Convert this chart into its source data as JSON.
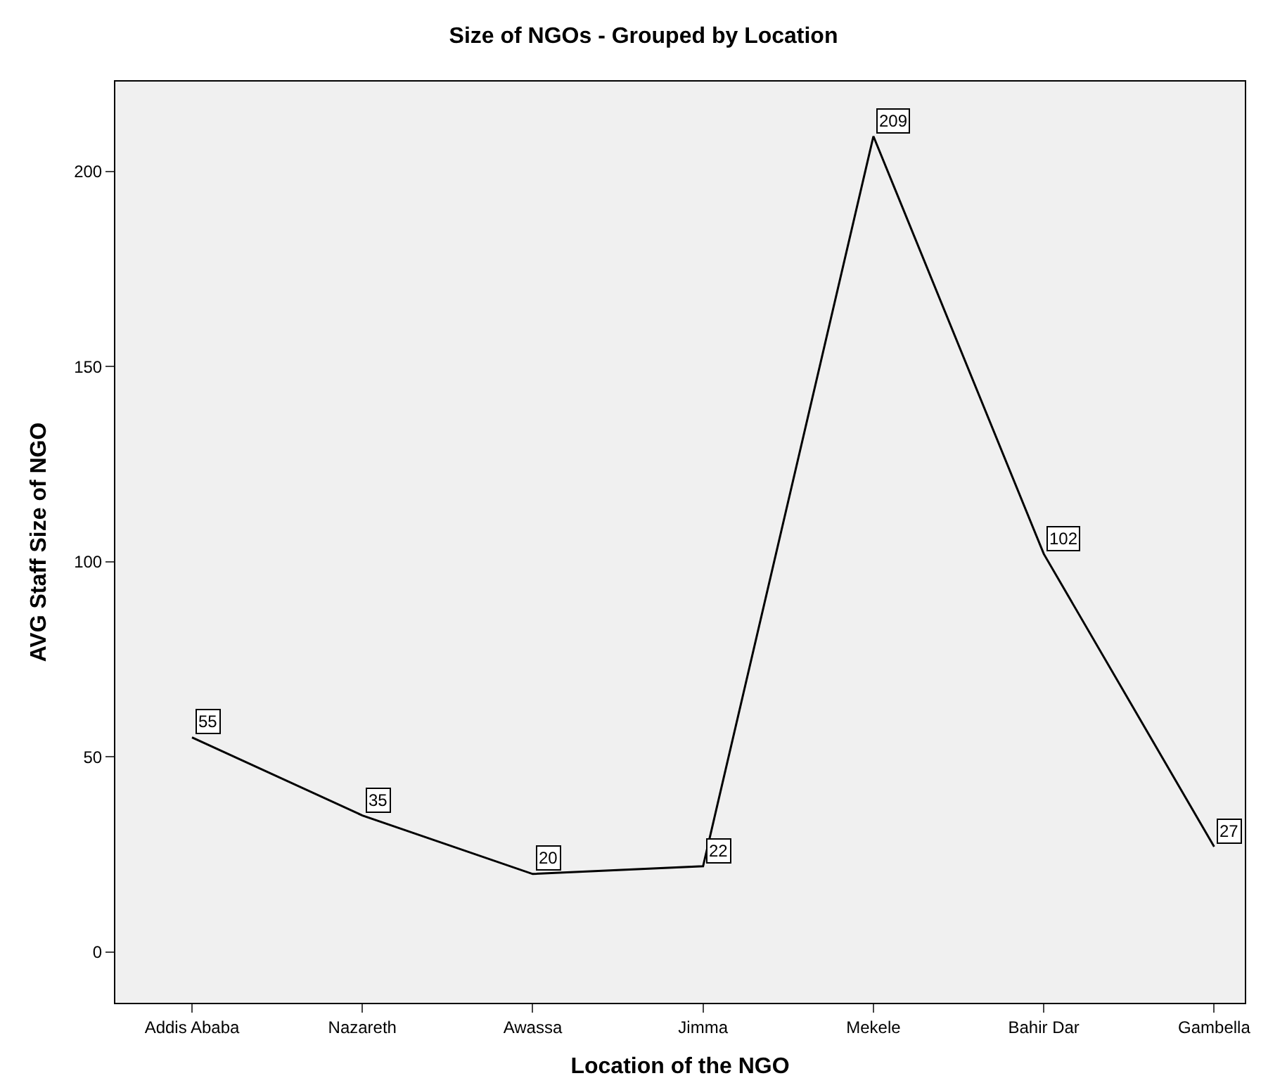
{
  "chart_data": {
    "type": "line",
    "title": "Size of NGOs - Grouped by Location",
    "xlabel": "Location of the NGO",
    "ylabel": "AVG Staff Size of NGO",
    "categories": [
      "Addis Ababa",
      "Nazareth",
      "Awassa",
      "Jimma",
      "Mekele",
      "Bahir Dar",
      "Gambella"
    ],
    "series": [
      {
        "color": "#000000",
        "values": [
          55,
          35,
          20,
          22,
          209,
          102,
          27
        ]
      }
    ],
    "ylim": [
      -13,
      223
    ],
    "yticks": [
      0,
      50,
      100,
      150,
      200
    ],
    "grid": false,
    "legend": false,
    "marker": "none",
    "line_style": "solid",
    "data_labels": true
  }
}
